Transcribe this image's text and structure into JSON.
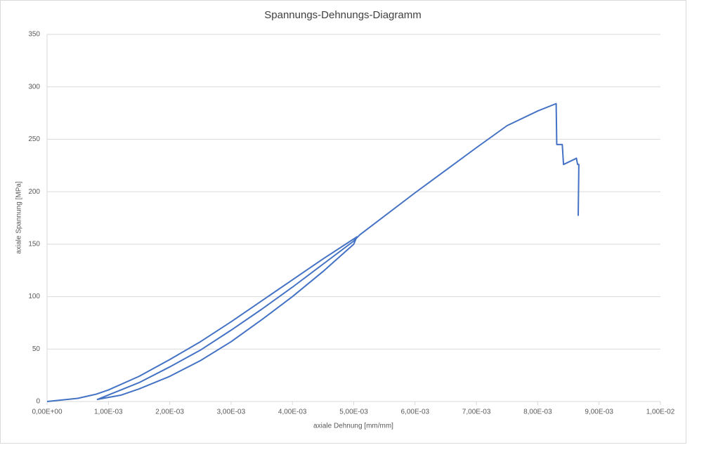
{
  "chart_data": {
    "type": "line",
    "title": "Spannungs-Dehnungs-Diagramm",
    "x_label": "axiale Dehnung [mm/mm]",
    "y_label": "axiale Spannung [MPa]",
    "xlim": [
      0,
      0.01
    ],
    "ylim": [
      0,
      350
    ],
    "xticks": [
      {
        "value": 0,
        "label": "0,00E+00"
      },
      {
        "value": 0.001,
        "label": "1,00E-03"
      },
      {
        "value": 0.002,
        "label": "2,00E-03"
      },
      {
        "value": 0.003,
        "label": "3,00E-03"
      },
      {
        "value": 0.004,
        "label": "4,00E-03"
      },
      {
        "value": 0.005,
        "label": "5,00E-03"
      },
      {
        "value": 0.006,
        "label": "6,00E-03"
      },
      {
        "value": 0.007,
        "label": "7,00E-03"
      },
      {
        "value": 0.008,
        "label": "8,00E-03"
      },
      {
        "value": 0.009,
        "label": "9,00E-03"
      },
      {
        "value": 0.01,
        "label": "1,00E-02"
      }
    ],
    "yticks": [
      0,
      50,
      100,
      150,
      200,
      250,
      300,
      350
    ],
    "grid": true,
    "series": [
      {
        "color": "#4472c4",
        "x": [
          0,
          0.0005,
          0.0008,
          0.001,
          0.0015,
          0.002,
          0.0025,
          0.003,
          0.0035,
          0.004,
          0.0045,
          0.005,
          0.00505,
          0.005,
          0.0045,
          0.004,
          0.0035,
          0.003,
          0.0025,
          0.002,
          0.0015,
          0.0012,
          0.00082,
          0.0015,
          0.002,
          0.0025,
          0.003,
          0.0035,
          0.004,
          0.0045,
          0.005,
          0.0051,
          0.006,
          0.007,
          0.0075,
          0.008,
          0.0083,
          0.00831,
          0.0084,
          0.00842,
          0.0086,
          0.00863,
          0.00865,
          0.00867,
          0.00866
        ],
        "values": [
          0,
          3,
          7,
          11,
          24,
          40,
          57,
          76,
          96,
          116,
          136,
          155,
          157,
          150,
          124,
          100,
          78,
          57,
          39,
          24,
          12,
          6,
          2,
          18,
          33,
          49,
          68,
          88,
          109,
          131,
          153,
          159,
          199,
          242,
          263,
          277,
          284,
          245,
          245,
          226,
          231,
          232,
          226,
          226,
          177
        ]
      }
    ]
  }
}
